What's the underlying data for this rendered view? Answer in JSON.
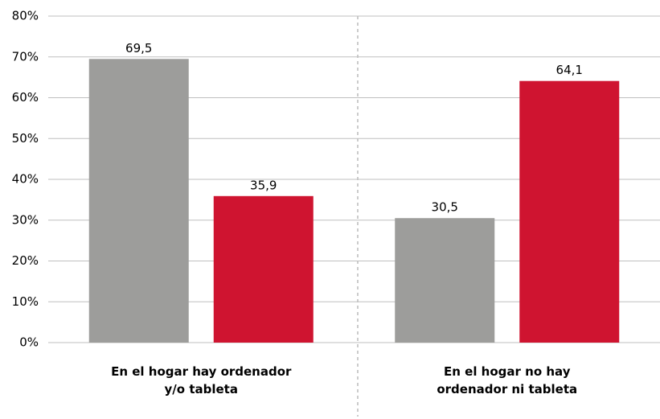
{
  "chart_data": {
    "type": "bar",
    "categories": [
      "En el hogar hay ordenador\ny/o tableta",
      "En el hogar no hay\nordenador ni tableta"
    ],
    "series": [
      {
        "color": "#9d9d9b",
        "values": [
          69.5,
          30.5
        ],
        "value_labels": [
          "69,5",
          "30,5"
        ]
      },
      {
        "color": "#cf1430",
        "values": [
          35.9,
          64.1
        ],
        "value_labels": [
          "35,9",
          "64,1"
        ]
      }
    ],
    "ylim": [
      0,
      80
    ],
    "yticks": [
      {
        "value": 0,
        "label": "0%"
      },
      {
        "value": 10,
        "label": "10%"
      },
      {
        "value": 20,
        "label": "20%"
      },
      {
        "value": 30,
        "label": "30%"
      },
      {
        "value": 40,
        "label": "40%"
      },
      {
        "value": 50,
        "label": "50%"
      },
      {
        "value": 60,
        "label": "60%"
      },
      {
        "value": 70,
        "label": "70%"
      },
      {
        "value": 80,
        "label": "80%"
      }
    ],
    "grid": true
  }
}
